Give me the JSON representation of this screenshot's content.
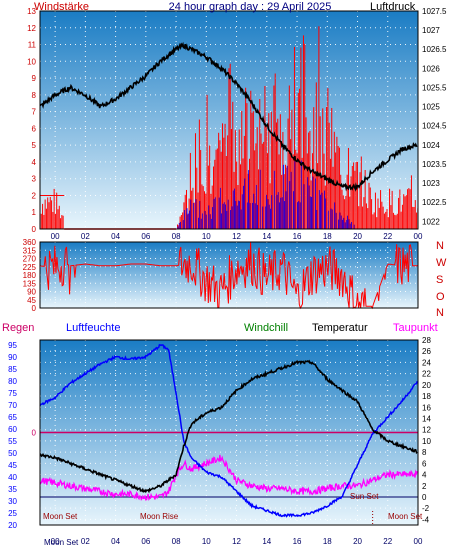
{
  "header": {
    "left": "Windstärke",
    "title": "24 hour graph day : 29 April 2025",
    "right": "Luftdruck"
  },
  "bottom_header": {
    "regen": "Regen",
    "luftfeuchte": "Luftfeuchte",
    "windchill": "Windchill",
    "temperatur": "Temperatur",
    "taupunkt": "Taupunkt"
  },
  "compass": [
    "N",
    "W",
    "S",
    "O",
    "N"
  ],
  "colors": {
    "bg_top": "#1a7cc4",
    "bg_bottom": "#dff0fb",
    "wind": "#ff0000",
    "gust_blue": "#0000ff",
    "pressure": "#000000",
    "humidity": "#0000ff",
    "temperature": "#000000",
    "dewpoint": "#ff00ff",
    "zero_line": "#cc0066",
    "regen_label": "#cc0066",
    "windchill_label": "#008000",
    "taupunkt_label": "#ff00ff",
    "luftfeuchte_label": "#0000ff",
    "events": "#990000"
  },
  "x_ticks": [
    "00",
    "02",
    "04",
    "06",
    "08",
    "10",
    "12",
    "14",
    "16",
    "18",
    "20",
    "22",
    "00"
  ],
  "events": {
    "moonset_left": "Moon Set",
    "moonrise": "Moon Rise",
    "sunset": "Sun Set",
    "moonset_right": "Moon Set",
    "moonset_axis": "Moon Set"
  },
  "chart_data": [
    {
      "type": "line",
      "title": "24 hour graph day : 29 April 2025",
      "xlabel": "",
      "x_unit": "hour",
      "xlim": [
        -1,
        24
      ],
      "y_left": {
        "label": "Windstärke",
        "ylim": [
          0,
          13
        ],
        "ticks": [
          0,
          1,
          2,
          3,
          4,
          5,
          6,
          7,
          8,
          9,
          10,
          11,
          12,
          13
        ]
      },
      "y_right": {
        "label": "Luftdruck",
        "ylim": [
          1021.8,
          1027.5
        ],
        "ticks": [
          "1022",
          "1022.5",
          "1023",
          "1023.5",
          "1024",
          "1024.5",
          "1025",
          "1025.5",
          "1026",
          "1026.5",
          "1027",
          "1027.5"
        ]
      },
      "series": [
        {
          "name": "Luftdruck",
          "axis": "right",
          "x": [
            -1,
            0,
            1,
            2,
            3,
            4,
            5,
            6,
            7,
            8,
            8.5,
            9,
            10,
            11,
            12,
            13,
            14,
            15,
            16,
            17,
            18,
            19,
            20,
            21,
            22,
            23,
            24
          ],
          "values": [
            1025.0,
            1025.3,
            1025.5,
            1025.3,
            1025.0,
            1025.2,
            1025.5,
            1025.8,
            1026.2,
            1026.5,
            1026.6,
            1026.5,
            1026.3,
            1026.0,
            1025.6,
            1025.1,
            1024.5,
            1024.0,
            1023.6,
            1023.3,
            1023.1,
            1022.9,
            1022.9,
            1023.3,
            1023.6,
            1023.9,
            1024.0
          ]
        },
        {
          "name": "Windstärke",
          "axis": "left",
          "x": [
            -1,
            0,
            1,
            2,
            3,
            4,
            5,
            6,
            7,
            8,
            9,
            10,
            11,
            12,
            13,
            14,
            15,
            16,
            17,
            18,
            19,
            20,
            21,
            22,
            23,
            24
          ],
          "values": [
            2,
            2,
            0,
            0,
            0,
            0,
            0,
            0,
            0,
            0,
            3,
            5,
            5,
            7,
            7,
            8,
            7,
            11,
            8,
            7,
            4,
            4,
            2,
            2,
            2,
            2
          ]
        },
        {
          "name": "Wind (blau)",
          "axis": "left",
          "x": [
            -1,
            0,
            1,
            2,
            3,
            4,
            5,
            6,
            7,
            8,
            9,
            10,
            11,
            12,
            13,
            14,
            15,
            16,
            17,
            18,
            19,
            20,
            21,
            22,
            23,
            24
          ],
          "values": [
            0,
            0,
            0,
            0,
            0,
            0,
            0,
            0,
            0,
            0,
            2,
            1,
            2,
            2,
            3,
            3,
            3,
            4,
            3,
            2,
            1,
            0,
            0,
            0,
            0,
            0
          ]
        }
      ]
    },
    {
      "type": "line",
      "title": "",
      "x_unit": "hour",
      "xlim": [
        -1,
        24
      ],
      "ylim": [
        0,
        360
      ],
      "y_ticks": [
        0,
        45,
        90,
        135,
        180,
        225,
        270,
        315,
        360
      ],
      "series": [
        {
          "name": "Windrichtung",
          "x": [
            -1,
            0,
            0.5,
            1,
            2,
            3,
            4,
            5,
            6,
            7,
            8,
            9,
            10,
            11,
            12,
            13,
            14,
            15,
            16,
            17,
            18,
            19,
            20,
            21,
            22,
            23,
            24
          ],
          "values": [
            230,
            220,
            250,
            230,
            240,
            230,
            230,
            240,
            240,
            230,
            230,
            250,
            150,
            90,
            220,
            250,
            160,
            220,
            60,
            190,
            220,
            180,
            10,
            10,
            240,
            230,
            230
          ]
        }
      ]
    },
    {
      "type": "line",
      "title": "",
      "x_unit": "hour",
      "xlim": [
        -1,
        24
      ],
      "y_left": {
        "label": "Luftfeuchte",
        "ylim": [
          20,
          97
        ],
        "ticks": [
          20,
          25,
          30,
          35,
          40,
          45,
          50,
          55,
          60,
          65,
          70,
          75,
          80,
          85,
          90,
          95
        ]
      },
      "y_right": {
        "label": "Temperatur",
        "ylim": [
          -5,
          28
        ],
        "ticks": [
          -4,
          -2,
          0,
          2,
          4,
          6,
          8,
          10,
          12,
          14,
          16,
          18,
          20,
          22,
          24,
          26,
          28
        ]
      },
      "reference_lines": [
        {
          "axis": "right",
          "y": 11.5,
          "label": "0"
        },
        {
          "axis": "right",
          "y": 0,
          "label": ""
        }
      ],
      "series": [
        {
          "name": "Luftfeuchte",
          "axis": "left",
          "x": [
            -1,
            0,
            1,
            2,
            3,
            4,
            5,
            6,
            7,
            7.5,
            8,
            8.5,
            9,
            10,
            11,
            12,
            13,
            14,
            15,
            16,
            17,
            18,
            19,
            20,
            21,
            22,
            23,
            24
          ],
          "values": [
            70,
            73,
            79,
            83,
            87,
            90,
            89,
            90,
            95,
            93,
            75,
            55,
            48,
            42,
            40,
            34,
            28,
            26,
            24,
            24,
            25,
            28,
            32,
            45,
            58,
            65,
            72,
            80
          ]
        },
        {
          "name": "Temperatur",
          "axis": "right",
          "x": [
            -1,
            0,
            1,
            2,
            3,
            4,
            5,
            6,
            7,
            8,
            8.5,
            9,
            10,
            11,
            12,
            13,
            14,
            15,
            16,
            17,
            18,
            19,
            20,
            21,
            22,
            23,
            24
          ],
          "values": [
            7.5,
            7,
            6,
            5,
            4,
            3,
            2,
            1,
            2,
            4,
            9,
            13,
            15,
            16,
            19,
            21,
            22,
            23,
            24,
            24,
            21,
            19,
            17,
            12,
            10,
            9,
            8
          ]
        },
        {
          "name": "Taupunkt",
          "axis": "right",
          "x": [
            -1,
            0,
            1,
            2,
            3,
            4,
            5,
            6,
            7,
            7.5,
            8,
            8.5,
            9,
            10,
            11,
            12,
            13,
            14,
            15,
            16,
            17,
            18,
            19,
            20,
            21,
            22,
            23,
            24
          ],
          "values": [
            3,
            2.5,
            2,
            1.5,
            1,
            0.5,
            0.5,
            0,
            0,
            1,
            4,
            6,
            5,
            6,
            7,
            3,
            2,
            1.5,
            1.5,
            1,
            1,
            1.5,
            2,
            2,
            3,
            4,
            4,
            4
          ]
        }
      ]
    }
  ]
}
